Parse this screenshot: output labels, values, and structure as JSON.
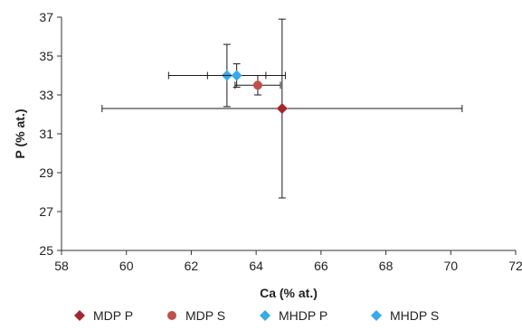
{
  "chart_data": {
    "type": "scatter",
    "xlabel": "Ca (% at.)",
    "ylabel": "P (% at.)",
    "xlim": [
      58,
      72
    ],
    "ylim": [
      25,
      37
    ],
    "x_ticks": [
      58,
      60,
      62,
      64,
      66,
      68,
      70,
      72
    ],
    "y_ticks": [
      25,
      27,
      29,
      31,
      33,
      35,
      37
    ],
    "grid": false,
    "legend_position": "bottom",
    "series": [
      {
        "name": "MDP P",
        "marker": "diamond",
        "color": "#a5272d",
        "points": [
          {
            "x": 64.8,
            "y": 32.3,
            "x_err": 5.55,
            "y_err": 4.6
          }
        ]
      },
      {
        "name": "MDP S",
        "marker": "circle",
        "color": "#c0504d",
        "points": [
          {
            "x": 64.05,
            "y": 33.5,
            "x_err": 0.7,
            "y_err": 0.5
          }
        ]
      },
      {
        "name": "MHDP P",
        "marker": "diamond",
        "color": "#3aa9e8",
        "points": [
          {
            "x": 63.1,
            "y": 34.0,
            "x_err": 1.8,
            "y_err": 1.6
          }
        ]
      },
      {
        "name": "MHDP S",
        "marker": "diamond",
        "color": "#3aa9e8",
        "points": [
          {
            "x": 63.4,
            "y": 34.0,
            "x_err": 0.9,
            "y_err": 0.6
          }
        ]
      }
    ]
  }
}
